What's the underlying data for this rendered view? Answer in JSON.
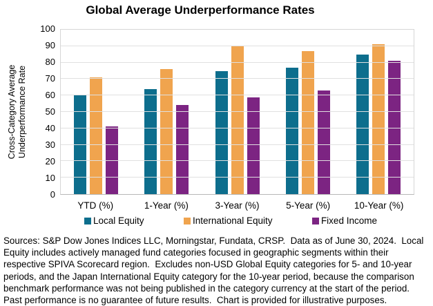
{
  "title": "Global Average Underperformance Rates",
  "chart_data": {
    "type": "bar",
    "categories": [
      "YTD (%)",
      "1-Year (%)",
      "3-Year (%)",
      "5-Year (%)",
      "10-Year (%)"
    ],
    "series": [
      {
        "name": "Local Equity",
        "color": "#0d6e8d",
        "values": [
          60,
          64,
          75,
          77,
          85
        ]
      },
      {
        "name": "International Equity",
        "color": "#f0a44e",
        "values": [
          71,
          76,
          90,
          87,
          91
        ]
      },
      {
        "name": "Fixed Income",
        "color": "#7c2482",
        "values": [
          41,
          54,
          59,
          63,
          81
        ]
      }
    ],
    "ylabel": "Cross-Category Average Underperformance Rate",
    "xlabel": "",
    "ylim": [
      0,
      100
    ],
    "ytick_step": 10,
    "grid": true,
    "legend_position": "bottom",
    "colors": {
      "gridline": "#e0e0e0",
      "plot_border": "#d6d6d6",
      "axis_line": "#b7b7b7",
      "background": "#ffffff"
    }
  },
  "footer_lines": [
    "Sources: S&P Dow Jones Indices LLC, Morningstar, Fundata, CRSP.  Data as of June 30, 2024.  Local",
    "Equity includes actively managed fund categories focused in geographic segments within their",
    "respective SPIVA Scorecard region.  Excludes non-USD Global Equity categories for 5- and 10-year",
    "periods, and the Japan International Equity category for the 10-year period, because the comparison",
    "benchmark performance was not being published in the category currency at the start of the period.",
    "Past performance is no guarantee of future results.  Chart is provided for illustrative purposes."
  ]
}
